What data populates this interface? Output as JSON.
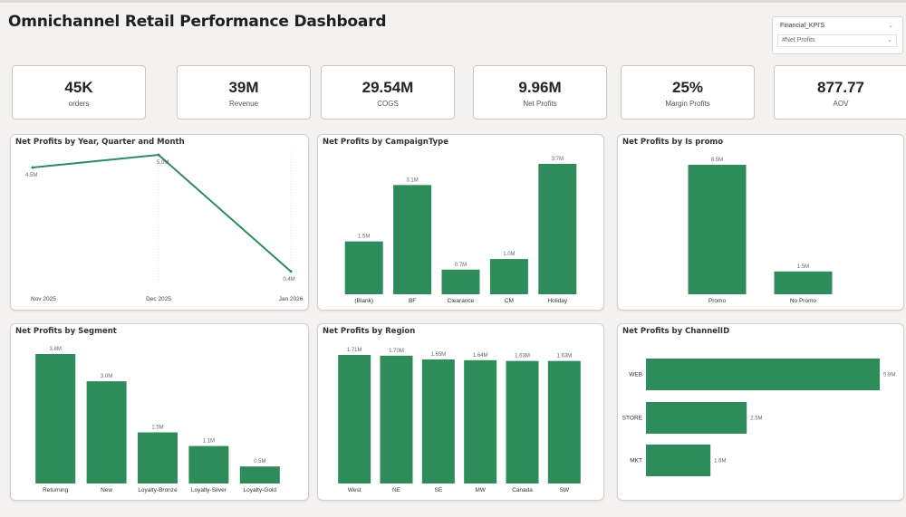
{
  "title": "Omnichannel Retail Performance Dashboard",
  "slicer": {
    "field": "Financial_KPI'S",
    "selected": "#Net Profits"
  },
  "colors": {
    "bar": "#2e8b5a",
    "line": "#2e8b5a"
  },
  "kpis": [
    {
      "value": "45K",
      "label": "orders"
    },
    {
      "value": "39M",
      "label": "Revenue"
    },
    {
      "value": "29.54M",
      "label": "COGS"
    },
    {
      "value": "9.96M",
      "label": "Net Profits"
    },
    {
      "value": "25%",
      "label": "Margin Profits"
    },
    {
      "value": "877.77",
      "label": "AOV"
    }
  ],
  "chart_data": [
    {
      "type": "line",
      "title": "Net Profits by Year, Quarter and Month",
      "categories": [
        "Nov 2025",
        "Dec 2025",
        "Jan 2026"
      ],
      "values": [
        4.5,
        5.0,
        0.4
      ],
      "labels": [
        "4.5M",
        "5.0M",
        "0.4M"
      ],
      "ylim": [
        0,
        5
      ]
    },
    {
      "type": "bar",
      "title": "Net Profits by CampaignType",
      "categories": [
        "(Blank)",
        "BF",
        "Clearance",
        "CM",
        "Holiday"
      ],
      "values": [
        1.5,
        3.1,
        0.7,
        1.0,
        3.7
      ],
      "labels": [
        "1.5M",
        "3.1M",
        "0.7M",
        "1.0M",
        "3.7M"
      ]
    },
    {
      "type": "bar",
      "title": "Net Profits by Is promo",
      "categories": [
        "Promo",
        "No Promo"
      ],
      "values": [
        8.5,
        1.5
      ],
      "labels": [
        "8.5M",
        "1.5M"
      ]
    },
    {
      "type": "bar",
      "title": "Net Profits by Segment",
      "categories": [
        "Returning",
        "New",
        "Loyalty-Bronze",
        "Loyalty-Silver",
        "Loyalty-Gold"
      ],
      "values": [
        3.8,
        3.0,
        1.5,
        1.1,
        0.5
      ],
      "labels": [
        "3.8M",
        "3.0M",
        "1.5M",
        "1.1M",
        "0.5M"
      ]
    },
    {
      "type": "bar",
      "title": "Net Profits by Region",
      "categories": [
        "West",
        "NE",
        "SE",
        "MW",
        "Canada",
        "SW"
      ],
      "values": [
        1.71,
        1.7,
        1.65,
        1.64,
        1.63,
        1.63
      ],
      "labels": [
        "1.71M",
        "1.70M",
        "1.65M",
        "1.64M",
        "1.63M",
        "1.63M"
      ]
    },
    {
      "type": "bar",
      "orientation": "horizontal",
      "title": "Net Profits by ChannelID",
      "categories": [
        "WEB",
        "STORE",
        "MKT"
      ],
      "values": [
        5.8,
        2.5,
        1.6
      ],
      "labels": [
        "5.8M",
        "2.5M",
        "1.6M"
      ]
    }
  ]
}
